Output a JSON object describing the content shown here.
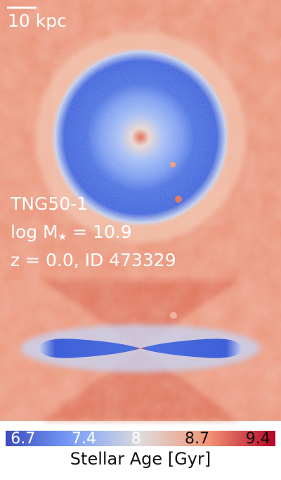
{
  "scale_bar": {
    "label": "10 kpc"
  },
  "top_panel": {
    "lines": [
      "TNG50-1",
      "z = 0.0, ID 473329"
    ],
    "mass_label": {
      "prefix": "log M",
      "subscript": "★",
      "suffix": " = 10.9"
    }
  },
  "colorbar": {
    "label": "Stellar Age [Gyr]",
    "lim": [
      6.5,
      9.6
    ],
    "ticks": [
      6.7,
      7.4,
      8.0,
      8.7,
      9.4
    ]
  }
}
